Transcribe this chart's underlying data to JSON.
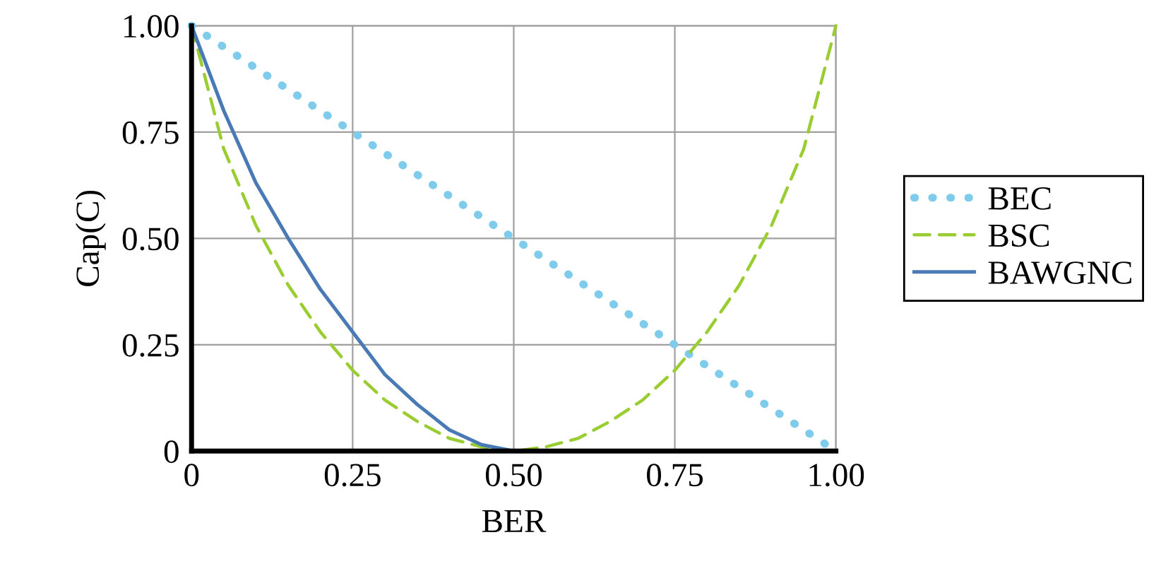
{
  "chart_data": {
    "type": "line",
    "xlabel": "BER",
    "ylabel": "Cap(C)",
    "xlim": [
      0,
      1
    ],
    "ylim": [
      0,
      1
    ],
    "xticks": [
      0,
      {
        "value": 0.25,
        "label": "0.25"
      },
      {
        "value": 0.5,
        "label": "0.50"
      },
      {
        "value": 0.75,
        "label": "0.75"
      },
      {
        "value": 1,
        "label": "1.00"
      }
    ],
    "yticks": [
      0,
      {
        "value": 0.25,
        "label": "0.25"
      },
      {
        "value": 0.5,
        "label": "0.50"
      },
      {
        "value": 0.75,
        "label": "0.75"
      },
      {
        "value": 1,
        "label": "1.00"
      }
    ],
    "grid": true,
    "legend": "right",
    "marker": "none",
    "series": [
      {
        "name": "BEC",
        "color": "#7ecbec",
        "line_style": "dotted",
        "x": [
          0,
          0.25,
          0.5,
          0.75,
          1
        ],
        "values": [
          1,
          0.75,
          0.5,
          0.25,
          0
        ]
      },
      {
        "name": "BSC",
        "color": "#9acd32",
        "line_style": "dashed",
        "x": [
          0,
          0.05,
          0.1,
          0.15,
          0.2,
          0.25,
          0.3,
          0.35,
          0.4,
          0.45,
          0.5,
          0.55,
          0.6,
          0.65,
          0.7,
          0.75,
          0.8,
          0.85,
          0.9,
          0.95,
          1
        ],
        "values": [
          1,
          0.71,
          0.53,
          0.39,
          0.28,
          0.19,
          0.12,
          0.07,
          0.03,
          0.01,
          0,
          0.01,
          0.03,
          0.07,
          0.12,
          0.19,
          0.28,
          0.39,
          0.53,
          0.71,
          1
        ]
      },
      {
        "name": "BAWGNC",
        "color": "#4a7ab5",
        "line_style": "solid",
        "x": [
          0,
          0.05,
          0.1,
          0.15,
          0.2,
          0.25,
          0.3,
          0.35,
          0.4,
          0.45,
          0.5
        ],
        "values": [
          1,
          0.8,
          0.63,
          0.5,
          0.38,
          0.28,
          0.18,
          0.11,
          0.05,
          0.015,
          0
        ]
      }
    ]
  }
}
